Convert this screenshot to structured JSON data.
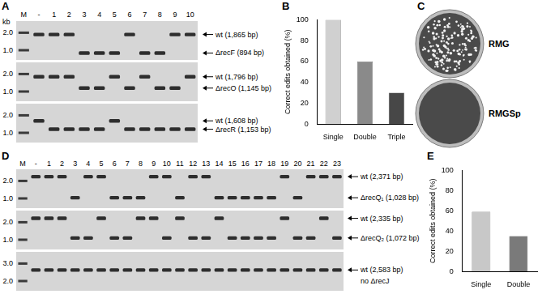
{
  "gels": [
    {
      "panel": "A",
      "unit_label": "kb",
      "lanes": [
        "M",
        "-",
        "1",
        "2",
        "3",
        "4",
        "5",
        "6",
        "7",
        "8",
        "9",
        "10"
      ],
      "strips": [
        {
          "ladder": [
            {
              "value": 2,
              "label": "2.0"
            },
            {
              "value": 1,
              "label": "1.0"
            }
          ],
          "bands": [
            {
              "label": "wt (1,865 bp)",
              "bp": 1865
            },
            {
              "label": "ΔrecF (894 bp)",
              "bp": 894
            }
          ],
          "lane_band": [
            0,
            0,
            0,
            1,
            1,
            1,
            0,
            1,
            1,
            0,
            0
          ]
        },
        {
          "ladder": [
            {
              "value": 2,
              "label": "2.0"
            },
            {
              "value": 1,
              "label": "1.0"
            }
          ],
          "bands": [
            {
              "label": "wt (1,796 bp)",
              "bp": 1796
            },
            {
              "label": "ΔrecO (1,145 bp)",
              "bp": 1145
            }
          ],
          "lane_band": [
            0,
            0,
            0,
            1,
            1,
            0,
            1,
            0,
            1,
            1,
            0
          ]
        },
        {
          "ladder": [
            {
              "value": 2,
              "label": "2.0"
            },
            {
              "value": 1,
              "label": "1.0"
            }
          ],
          "bands": [
            {
              "label": "wt (1,608 bp)",
              "bp": 1608
            },
            {
              "label": "ΔrecR (1,153 bp)",
              "bp": 1153
            }
          ],
          "lane_band": [
            0,
            1,
            1,
            1,
            1,
            0,
            1,
            1,
            1,
            1,
            1
          ]
        }
      ]
    },
    {
      "panel": "D",
      "lanes": [
        "M",
        "-",
        "1",
        "2",
        "3",
        "4",
        "5",
        "6",
        "7",
        "8",
        "9",
        "10",
        "11",
        "12",
        "13",
        "14",
        "15",
        "16",
        "17",
        "18",
        "19",
        "20",
        "21",
        "22",
        "23"
      ],
      "strips": [
        {
          "ladder": [
            {
              "value": 2,
              "label": "2.0"
            },
            {
              "value": 1,
              "label": "1.0"
            }
          ],
          "bands": [
            {
              "label": "wt (2,371 bp)",
              "bp": 2371
            },
            {
              "label": "ΔrecQ₁ (1,028 bp)",
              "bp": 1028
            }
          ],
          "lane_band": [
            0,
            0,
            0,
            1,
            0,
            0,
            1,
            1,
            1,
            0,
            0,
            1,
            0,
            0,
            1,
            1,
            1,
            1,
            1,
            0,
            1,
            0,
            0,
            0
          ]
        },
        {
          "ladder": [
            {
              "value": 2,
              "label": "2.0"
            },
            {
              "value": 1,
              "label": "1.0"
            }
          ],
          "bands": [
            {
              "label": "wt (2,335 bp)",
              "bp": 2335
            },
            {
              "label": "ΔrecQ₂ (1,072 bp)",
              "bp": 1072
            }
          ],
          "lane_band": [
            0,
            0,
            0,
            1,
            1,
            0,
            1,
            1,
            0,
            0,
            1,
            0,
            1,
            1,
            0,
            1,
            1,
            1,
            1,
            0,
            1,
            1,
            0,
            1
          ]
        },
        {
          "ladder": [
            {
              "value": 3,
              "label": "3.0"
            },
            {
              "value": 2,
              "label": "2.0"
            }
          ],
          "bands": [
            {
              "label": "wt (2,583 bp)",
              "bp": 2583
            }
          ],
          "notes": [
            "no ΔrecJ"
          ],
          "lane_band": [
            0,
            0,
            0,
            0,
            0,
            0,
            0,
            0,
            0,
            0,
            0,
            0,
            0,
            0,
            0,
            0,
            0,
            0,
            0,
            0,
            0,
            0,
            0,
            0
          ]
        }
      ]
    }
  ],
  "plates": {
    "panel": "C",
    "labels": [
      "RMG",
      "RMGSp"
    ],
    "colonies": [
      150,
      0
    ]
  },
  "chart_data": [
    {
      "panel": "B",
      "type": "bar",
      "y_label": "Correct edits obtained (%)",
      "categories": [
        "Single",
        "Double",
        "Triple"
      ],
      "values": [
        100,
        60,
        30
      ],
      "colors": [
        "#d0d0d0",
        "#8a8a8a",
        "#474747"
      ],
      "ylim": [
        0,
        100
      ],
      "yticks": [
        0,
        20,
        40,
        60,
        80,
        100
      ],
      "grid": false
    },
    {
      "panel": "E",
      "type": "bar",
      "y_label": "Correct edits obtained (%)",
      "categories": [
        "Single",
        "Double"
      ],
      "values": [
        59,
        35
      ],
      "colors": [
        "#c8c8c8",
        "#7a7a7a"
      ],
      "ylim": [
        0,
        100
      ],
      "yticks": [
        0,
        20,
        40,
        60,
        80,
        100
      ],
      "grid": false
    }
  ]
}
